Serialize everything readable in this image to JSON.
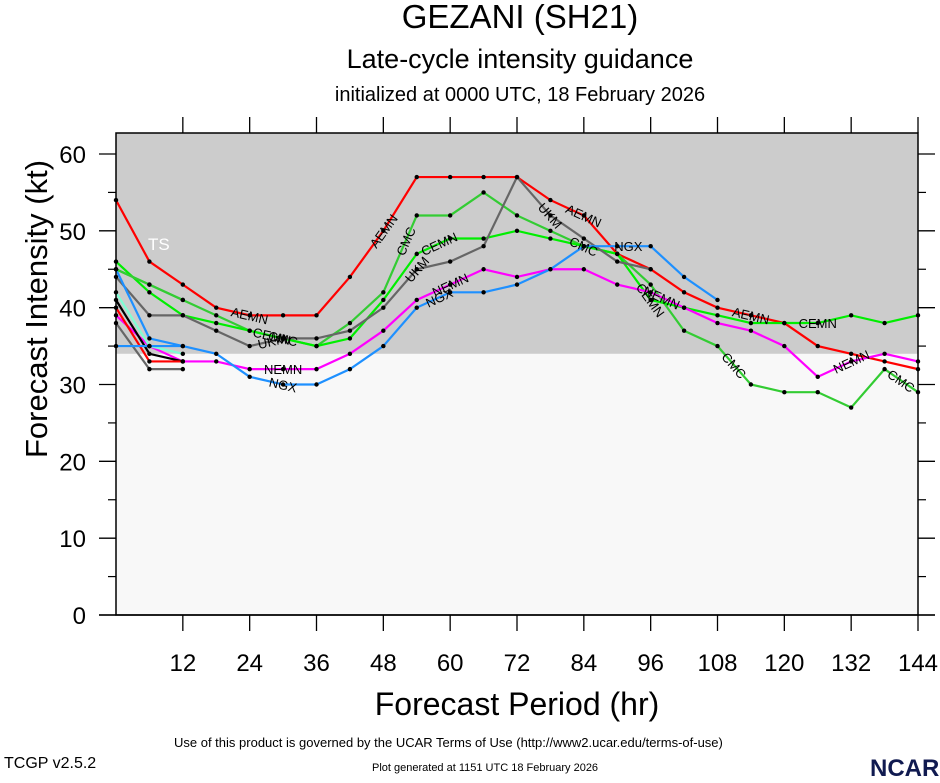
{
  "chart_data": {
    "type": "line",
    "title": "GEZANI (SH21)",
    "subtitle": "Late-cycle intensity guidance",
    "initialized": "initialized at 0000 UTC, 18 February 2026",
    "xlabel": "Forecast Period (hr)",
    "ylabel": "Forecast Intensity (kt)",
    "xlim": [
      0,
      144
    ],
    "ylim": [
      0,
      63
    ],
    "xticks": [
      12,
      24,
      36,
      48,
      60,
      72,
      84,
      96,
      108,
      120,
      132,
      144
    ],
    "yticks": [
      0,
      10,
      20,
      30,
      40,
      50,
      60
    ],
    "ts_threshold": 34,
    "ts_label": "TS",
    "series": [
      {
        "name": "AEMN",
        "color": "#ff0000",
        "x": [
          0,
          6,
          12,
          18,
          24,
          30,
          36,
          42,
          48,
          54,
          60,
          66,
          72,
          78,
          84,
          90,
          96,
          102,
          108,
          114,
          120,
          126,
          132,
          138,
          144
        ],
        "values": [
          54,
          46,
          43,
          40,
          39,
          39,
          39,
          44,
          50,
          57,
          57,
          57,
          57,
          54,
          52,
          47,
          45,
          42,
          40,
          39,
          38,
          35,
          34,
          33,
          32
        ],
        "label_x": [
          24,
          48,
          84,
          114
        ]
      },
      {
        "name": "CMC",
        "color": "#33cc33",
        "x": [
          0,
          6,
          12,
          18,
          24,
          30,
          36,
          42,
          48,
          54,
          60,
          66,
          72,
          78,
          84,
          90,
          96,
          102,
          108,
          114,
          120,
          126,
          132,
          138,
          144
        ],
        "values": [
          45,
          43,
          41,
          39,
          37,
          36,
          35,
          38,
          42,
          52,
          52,
          55,
          52,
          50,
          48,
          47,
          43,
          37,
          35,
          30,
          29,
          29,
          27,
          32,
          29
        ],
        "label_x": [
          30,
          52,
          84,
          111,
          141
        ]
      },
      {
        "name": "CEMN",
        "color": "#00ee00",
        "x": [
          0,
          6,
          12,
          18,
          24,
          30,
          36,
          42,
          48,
          54,
          60,
          66,
          72,
          78,
          84,
          90,
          96,
          102,
          108,
          114,
          120,
          126,
          132,
          138,
          144
        ],
        "values": [
          46,
          42,
          39,
          38,
          37,
          36,
          35,
          36,
          41,
          47,
          49,
          49,
          50,
          49,
          48,
          47,
          41,
          40,
          39,
          38,
          38,
          38,
          39,
          38,
          39
        ],
        "label_x": [
          28,
          58,
          96,
          126
        ]
      },
      {
        "name": "UKM",
        "color": "#666666",
        "x": [
          0,
          6,
          12,
          18,
          24,
          30,
          36,
          42,
          48,
          54,
          60,
          66,
          72,
          78,
          84,
          90,
          96
        ],
        "values": [
          44,
          39,
          39,
          37,
          35,
          36,
          36,
          37,
          40,
          45,
          46,
          48,
          57,
          52,
          49,
          46,
          45
        ],
        "label_x": [
          28,
          54,
          78
        ]
      },
      {
        "name": "NEMN",
        "color": "#ff00ff",
        "x": [
          0,
          6,
          12,
          18,
          24,
          30,
          36,
          42,
          48,
          54,
          60,
          66,
          72,
          78,
          84,
          90,
          96,
          102,
          108,
          114,
          120,
          126,
          132,
          138,
          144
        ],
        "values": [
          39,
          35,
          33,
          33,
          32,
          32,
          32,
          34,
          37,
          41,
          43,
          45,
          44,
          45,
          45,
          43,
          42,
          40,
          38,
          37,
          35,
          31,
          33,
          34,
          33
        ],
        "label_x": [
          30,
          60,
          98,
          132
        ]
      },
      {
        "name": "NGX",
        "color": "#1e90ff",
        "x": [
          0,
          6,
          12,
          18,
          24,
          30,
          36,
          42,
          48,
          54,
          60,
          66,
          72,
          78,
          84,
          90,
          96,
          102,
          108
        ],
        "values": [
          45,
          36,
          35,
          34,
          31,
          30,
          30,
          32,
          35,
          40,
          42,
          42,
          43,
          45,
          48,
          48,
          48,
          44,
          41
        ],
        "label_x": [
          30,
          58,
          92
        ]
      },
      {
        "name": "",
        "color": "#000000",
        "x": [
          0,
          6,
          12
        ],
        "values": [
          41,
          34,
          33
        ],
        "label_x": []
      },
      {
        "name": "",
        "color": "#7fffd4",
        "x": [
          0,
          6,
          12
        ],
        "values": [
          42,
          35,
          34
        ],
        "label_x": []
      },
      {
        "name": "",
        "color": "#ff0000",
        "x": [
          0,
          6,
          12
        ],
        "values": [
          40,
          33,
          33
        ],
        "label_x": []
      },
      {
        "name": "",
        "color": "#666666",
        "x": [
          0,
          6,
          12
        ],
        "values": [
          38,
          32,
          32
        ],
        "label_x": []
      },
      {
        "name": "",
        "color": "#1e90ff",
        "x": [
          0,
          6,
          12
        ],
        "values": [
          35,
          35,
          35
        ],
        "label_x": []
      },
      {
        "name": "",
        "color": "#33cc33",
        "x": [
          0,
          6,
          12
        ],
        "values": [
          45,
          43,
          41
        ],
        "label_x": []
      }
    ],
    "grid": false,
    "legend": "inline-labels"
  },
  "footer": {
    "terms": "Use of this product is governed by the UCAR Terms of Use (http://www2.ucar.edu/terms-of-use)",
    "version": "TCGP v2.5.2",
    "generated": "Plot generated at 1151 UTC   18 February 2026",
    "logo": "NCAR"
  }
}
